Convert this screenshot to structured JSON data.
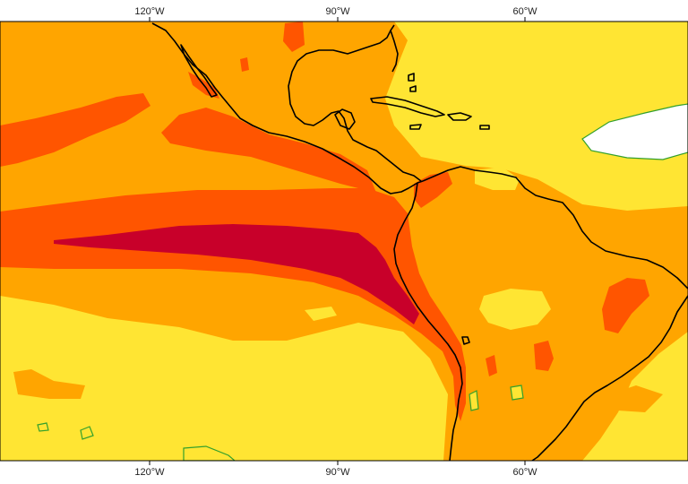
{
  "map": {
    "projection": "cylindrical",
    "region": "Eastern Pacific, Central and South America",
    "longitude_ticks_top": [
      "120°W",
      "90°W",
      "60°W"
    ],
    "longitude_ticks_bottom": [
      "120°W",
      "90°W",
      "60°W"
    ],
    "longitude_tick_values": [
      -120,
      -90,
      -60
    ],
    "colors": {
      "darkest": "#c8002a",
      "dark": "#ff5500",
      "mid": "#ffa500",
      "light": "#ffe533",
      "lowest": "#ffffff",
      "contour": "#33a02c",
      "coastline": "#000000"
    }
  }
}
